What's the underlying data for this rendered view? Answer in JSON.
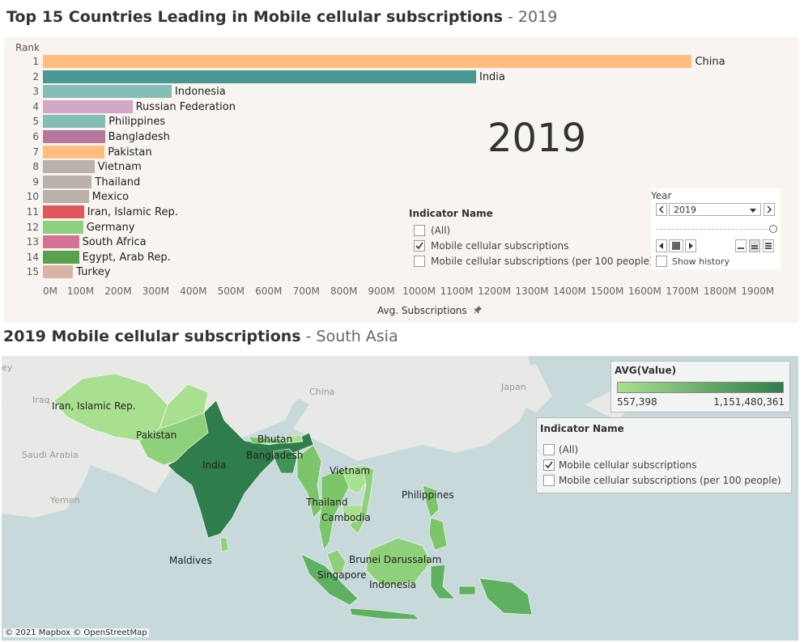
{
  "top_title": {
    "main": "Top 15 Countries Leading in Mobile cellular subscriptions",
    "sub": " - 2019"
  },
  "rank_header": "Rank",
  "big_year": "2019",
  "chart_data": {
    "type": "bar",
    "orientation": "horizontal",
    "categories": [
      "China",
      "India",
      "Indonesia",
      "Russian Federation",
      "Philippines",
      "Bangladesh",
      "Pakistan",
      "Vietnam",
      "Thailand",
      "Mexico",
      "Iran, Islamic Rep.",
      "Germany",
      "South Africa",
      "Egypt, Arab Rep.",
      "Turkey"
    ],
    "ranks": [
      "1",
      "2",
      "3",
      "4",
      "5",
      "6",
      "7",
      "8",
      "9",
      "10",
      "11",
      "12",
      "13",
      "14",
      "15"
    ],
    "values": [
      1725000000,
      1151480361,
      342000000,
      238000000,
      166000000,
      165000000,
      164000000,
      137000000,
      130000000,
      122000000,
      109000000,
      107000000,
      96000000,
      96000000,
      80000000
    ],
    "colors": [
      "#ffbe7d",
      "#499894",
      "#86bcb6",
      "#d4a6c8",
      "#86bcb6",
      "#b6779f",
      "#ffbe7d",
      "#bab0ac",
      "#bab0ac",
      "#bab0ac",
      "#e15759",
      "#8cd17d",
      "#d37295",
      "#59a14f",
      "#d7b5a6"
    ],
    "xlabel": "Avg. Subscriptions",
    "xlim": [
      0,
      1950000000
    ],
    "xticks": [
      "0M",
      "100M",
      "200M",
      "300M",
      "400M",
      "500M",
      "600M",
      "700M",
      "800M",
      "900M",
      "1000M",
      "1100M",
      "1200M",
      "1300M",
      "1400M",
      "1500M",
      "1600M",
      "1700M",
      "1800M",
      "1900M"
    ],
    "xtick_values": [
      0,
      100000000,
      200000000,
      300000000,
      400000000,
      500000000,
      600000000,
      700000000,
      800000000,
      900000000,
      1000000000,
      1100000000,
      1200000000,
      1300000000,
      1400000000,
      1500000000,
      1600000000,
      1700000000,
      1800000000,
      1900000000
    ]
  },
  "indicator_filter": {
    "title": "Indicator Name",
    "options": [
      {
        "label": "(All)",
        "checked": false
      },
      {
        "label": "Mobile cellular subscriptions",
        "checked": true
      },
      {
        "label": "Mobile cellular subscriptions (per 100 people)",
        "checked": false
      }
    ]
  },
  "year_control": {
    "title": "Year",
    "selected": "2019",
    "show_history_label": "Show history"
  },
  "map_title": {
    "main": "2019 Mobile cellular subscriptions",
    "sub": " - South Asia"
  },
  "map": {
    "color_legend": {
      "title": "AVG(Value)",
      "min_label": "557,398",
      "max_label": "1,151,480,361",
      "min_color": "#a8e08f",
      "max_color": "#2e7d4a"
    },
    "country_labels": [
      "Iran, Islamic Rep.",
      "Pakistan",
      "India",
      "Bhutan",
      "Bangladesh",
      "Vietnam",
      "Thailand",
      "Cambodia",
      "Philippines",
      "Maldives",
      "Brunei Darussalam",
      "Singapore",
      "Indonesia"
    ],
    "faint_labels": [
      "Iraq",
      "Saudi Arabia",
      "Yemen",
      "China",
      "Japan",
      "ey"
    ],
    "attribution": "© 2021 Mapbox © OpenStreetMap"
  },
  "icons": [
    "pin-icon",
    "checkmark-icon",
    "chevron-left-icon",
    "chevron-right-icon",
    "dropdown-arrow-icon",
    "play-back-icon",
    "stop-icon",
    "play-forward-icon"
  ]
}
